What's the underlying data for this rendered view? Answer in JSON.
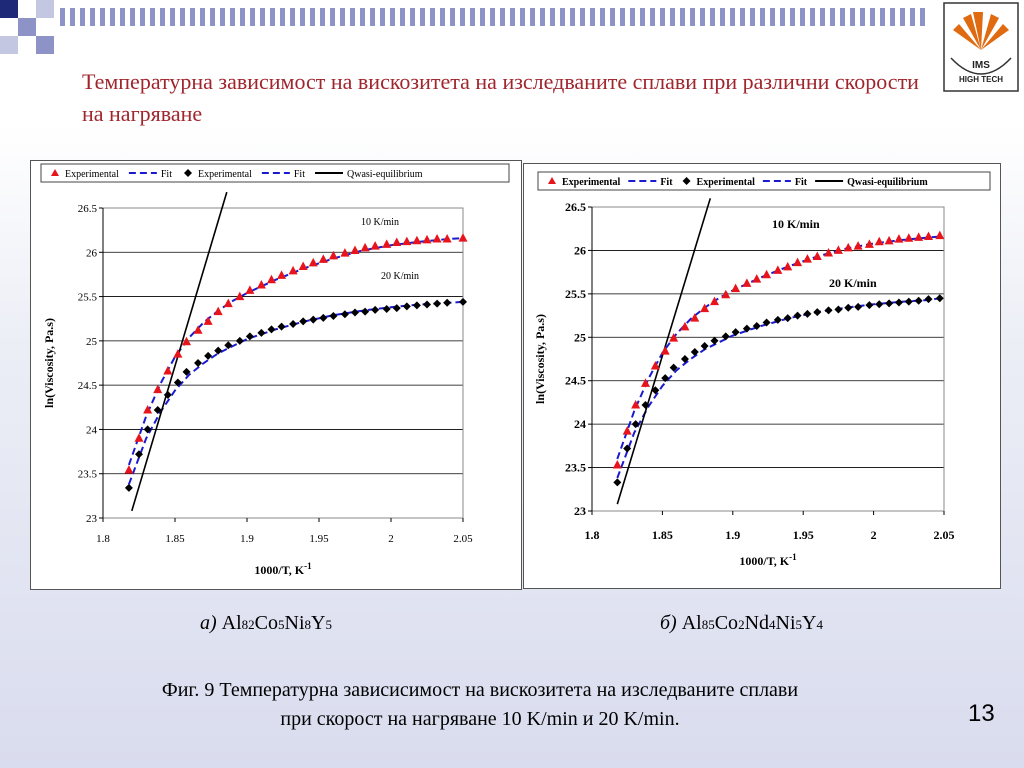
{
  "slide": {
    "title": "Температурна зависимост на вискозитета на изследваните сплави при различни скорости на нагряване",
    "caption_a_prefix": "а)",
    "caption_b_prefix": "б)",
    "fig_caption_line1": "Фиг. 9 Температурна зависисимост на вискозитета на изследваните сплави",
    "fig_caption_line2": "при скорост на нагряване 10 K/min и 20 K/min.",
    "page_number": "13",
    "logo_text_1": "IMS",
    "logo_text_2": "HIGH TECH"
  },
  "alloy_a": [
    "Al",
    "82",
    "Co",
    "5",
    "Ni",
    "8",
    "Y",
    "5"
  ],
  "alloy_b": [
    "Al",
    "85",
    "Co",
    "2",
    "Nd",
    "4",
    "Ni",
    "5",
    "Y",
    "4"
  ],
  "colors": {
    "red": "#e8141c",
    "blue": "#1a1ad0",
    "black": "#000000",
    "title": "#a0262e"
  },
  "chart_data": [
    {
      "type": "scatter",
      "xlabel": "1000/T, K-1",
      "ylabel": "ln(Viscosity, Pa.s)",
      "xlim": [
        1.8,
        2.05
      ],
      "ylim": [
        23,
        26.5
      ],
      "xticks": [
        "1.8",
        "1.85",
        "1.9",
        "1.95",
        "2",
        "2.05"
      ],
      "yticks": [
        "23",
        "23.5",
        "24",
        "24.5",
        "25",
        "25.5",
        "26",
        "26.5"
      ],
      "grid": "horizontal",
      "legend": [
        "Experimental",
        "Fit",
        "Experimental",
        "Fit",
        "Qwasi-equilibrium"
      ],
      "annotations": [
        "10 K/min",
        "20 K/min"
      ],
      "series": [
        {
          "name": "Experimental",
          "marker": "triangle",
          "color": "#e8141c",
          "x": [
            1.818,
            1.825,
            1.831,
            1.838,
            1.845,
            1.852,
            1.858,
            1.866,
            1.873,
            1.88,
            1.887,
            1.895,
            1.902,
            1.91,
            1.917,
            1.924,
            1.932,
            1.939,
            1.946,
            1.953,
            1.96,
            1.968,
            1.975,
            1.982,
            1.989,
            1.997,
            2.004,
            2.011,
            2.018,
            2.025,
            2.032,
            2.039,
            2.05
          ],
          "y": [
            23.54,
            23.9,
            24.22,
            24.45,
            24.66,
            24.85,
            24.99,
            25.12,
            25.22,
            25.33,
            25.42,
            25.5,
            25.57,
            25.63,
            25.69,
            25.74,
            25.79,
            25.84,
            25.88,
            25.92,
            25.96,
            25.99,
            26.02,
            26.05,
            26.07,
            26.09,
            26.11,
            26.12,
            26.13,
            26.14,
            26.15,
            26.15,
            26.16
          ]
        },
        {
          "name": "Fit",
          "line": "dashed",
          "color": "#1a1ad0",
          "x": [
            1.818,
            1.83,
            1.84,
            1.85,
            1.86,
            1.87,
            1.88,
            1.89,
            1.9,
            1.92,
            1.94,
            1.96,
            1.98,
            2.0,
            2.02,
            2.04,
            2.05
          ],
          "y": [
            23.6,
            24.15,
            24.52,
            24.82,
            25.04,
            25.21,
            25.34,
            25.45,
            25.54,
            25.69,
            25.82,
            25.93,
            26.02,
            26.08,
            26.12,
            26.15,
            26.16
          ]
        },
        {
          "name": "Experimental",
          "marker": "diamond",
          "color": "#000000",
          "x": [
            1.818,
            1.825,
            1.831,
            1.838,
            1.845,
            1.852,
            1.858,
            1.866,
            1.873,
            1.88,
            1.887,
            1.895,
            1.902,
            1.91,
            1.917,
            1.924,
            1.932,
            1.939,
            1.946,
            1.953,
            1.96,
            1.968,
            1.975,
            1.982,
            1.989,
            1.997,
            2.004,
            2.011,
            2.018,
            2.025,
            2.032,
            2.039,
            2.05
          ],
          "y": [
            23.34,
            23.72,
            24.0,
            24.22,
            24.39,
            24.53,
            24.65,
            24.75,
            24.83,
            24.89,
            24.95,
            25.0,
            25.05,
            25.09,
            25.13,
            25.16,
            25.19,
            25.22,
            25.24,
            25.26,
            25.28,
            25.3,
            25.32,
            25.33,
            25.35,
            25.36,
            25.37,
            25.39,
            25.4,
            25.41,
            25.42,
            25.43,
            25.44
          ]
        },
        {
          "name": "Fit",
          "line": "dashed",
          "color": "#1a1ad0",
          "x": [
            1.818,
            1.83,
            1.84,
            1.85,
            1.86,
            1.87,
            1.88,
            1.9,
            1.92,
            1.94,
            1.96,
            1.98,
            2.0,
            2.02,
            2.04,
            2.05
          ],
          "y": [
            23.38,
            23.9,
            24.2,
            24.44,
            24.62,
            24.75,
            24.86,
            25.02,
            25.13,
            25.22,
            25.29,
            25.34,
            25.38,
            25.41,
            25.43,
            25.44
          ]
        },
        {
          "name": "Qwasi-equilibrium",
          "line": "solid",
          "color": "#000000",
          "x": [
            1.82,
            1.886
          ],
          "y": [
            23.08,
            26.68
          ]
        }
      ]
    },
    {
      "type": "scatter",
      "xlabel": "1000/T, K-1",
      "ylabel": "ln(Viscosity, Pa.s)",
      "xlim": [
        1.8,
        2.05
      ],
      "ylim": [
        23,
        26.5
      ],
      "xticks": [
        "1.8",
        "1.85",
        "1.9",
        "1.95",
        "2",
        "2.05"
      ],
      "yticks": [
        "23",
        "23.5",
        "24",
        "24.5",
        "25",
        "25.5",
        "26",
        "26.5"
      ],
      "grid": "horizontal",
      "legend": [
        "Experimental",
        "Fit",
        "Experimental",
        "Fit",
        "Qwasi-equilibrium"
      ],
      "annotations": [
        "10 K/min",
        "20 K/min"
      ],
      "series": [
        {
          "name": "Experimental",
          "marker": "triangle",
          "color": "#e8141c",
          "x": [
            1.818,
            1.825,
            1.831,
            1.838,
            1.845,
            1.852,
            1.858,
            1.866,
            1.873,
            1.88,
            1.887,
            1.895,
            1.902,
            1.91,
            1.917,
            1.924,
            1.932,
            1.939,
            1.946,
            1.953,
            1.96,
            1.968,
            1.975,
            1.982,
            1.989,
            1.997,
            2.004,
            2.011,
            2.018,
            2.025,
            2.032,
            2.039,
            2.047
          ],
          "y": [
            23.53,
            23.92,
            24.22,
            24.47,
            24.67,
            24.84,
            24.99,
            25.12,
            25.22,
            25.33,
            25.41,
            25.49,
            25.56,
            25.62,
            25.67,
            25.72,
            25.77,
            25.81,
            25.86,
            25.9,
            25.93,
            25.97,
            26.0,
            26.03,
            26.05,
            26.07,
            26.1,
            26.11,
            26.13,
            26.14,
            26.15,
            26.16,
            26.17
          ]
        },
        {
          "name": "Fit",
          "line": "dashed",
          "color": "#1a1ad0",
          "x": [
            1.818,
            1.83,
            1.84,
            1.85,
            1.86,
            1.87,
            1.88,
            1.89,
            1.9,
            1.92,
            1.94,
            1.96,
            1.98,
            2.0,
            2.02,
            2.04,
            2.047
          ],
          "y": [
            23.6,
            24.15,
            24.52,
            24.82,
            25.04,
            25.21,
            25.34,
            25.45,
            25.54,
            25.69,
            25.82,
            25.93,
            26.02,
            26.08,
            26.12,
            26.15,
            26.16
          ]
        },
        {
          "name": "Experimental",
          "marker": "diamond",
          "color": "#000000",
          "x": [
            1.818,
            1.825,
            1.831,
            1.838,
            1.845,
            1.852,
            1.858,
            1.866,
            1.873,
            1.88,
            1.887,
            1.895,
            1.902,
            1.91,
            1.917,
            1.924,
            1.932,
            1.939,
            1.946,
            1.953,
            1.96,
            1.968,
            1.975,
            1.982,
            1.989,
            1.997,
            2.004,
            2.011,
            2.018,
            2.025,
            2.032,
            2.039,
            2.047
          ],
          "y": [
            23.33,
            23.72,
            24.0,
            24.22,
            24.39,
            24.53,
            24.65,
            24.75,
            24.83,
            24.9,
            24.96,
            25.01,
            25.06,
            25.1,
            25.13,
            25.17,
            25.2,
            25.22,
            25.25,
            25.27,
            25.29,
            25.31,
            25.32,
            25.34,
            25.35,
            25.37,
            25.38,
            25.39,
            25.4,
            25.41,
            25.42,
            25.44,
            25.45
          ]
        },
        {
          "name": "Fit",
          "line": "dashed",
          "color": "#1a1ad0",
          "x": [
            1.818,
            1.83,
            1.84,
            1.85,
            1.86,
            1.87,
            1.88,
            1.9,
            1.92,
            1.94,
            1.96,
            1.98,
            2.0,
            2.02,
            2.04,
            2.047
          ],
          "y": [
            23.38,
            23.9,
            24.2,
            24.44,
            24.62,
            24.75,
            24.86,
            25.02,
            25.13,
            25.22,
            25.29,
            25.34,
            25.38,
            25.41,
            25.43,
            25.45
          ]
        },
        {
          "name": "Qwasi-equilibrium",
          "line": "solid",
          "color": "#000000",
          "x": [
            1.818,
            1.884
          ],
          "y": [
            23.08,
            26.6
          ]
        }
      ]
    }
  ]
}
